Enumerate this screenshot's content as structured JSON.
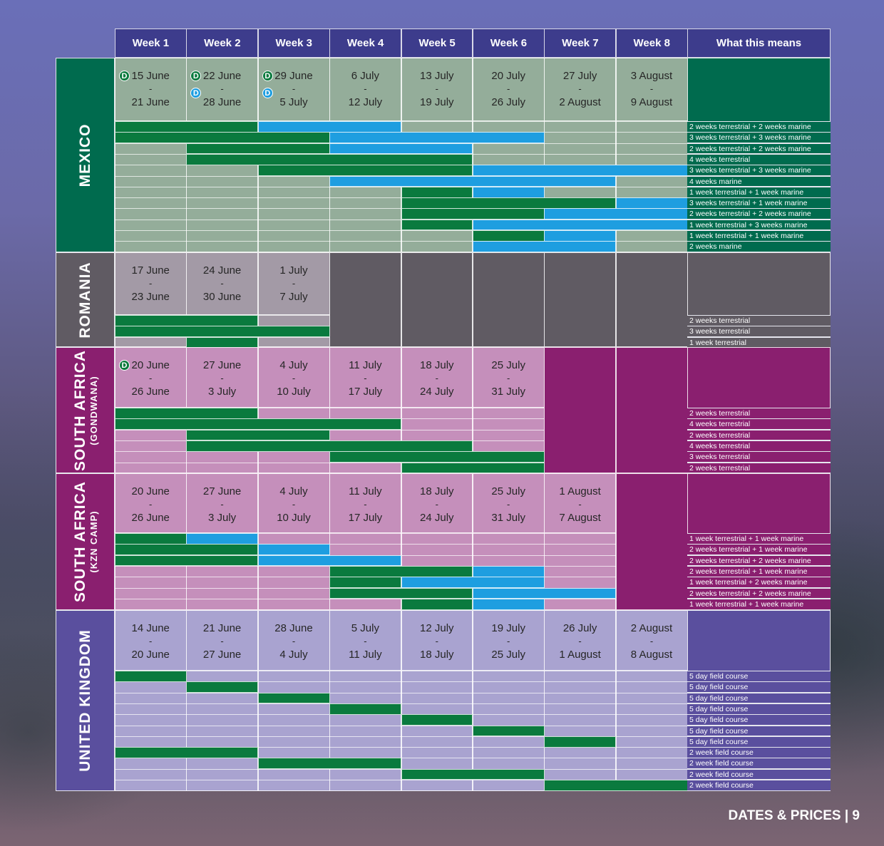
{
  "weeks": [
    "Week 1",
    "Week 2",
    "Week 3",
    "Week 4",
    "Week 5",
    "Week 6",
    "Week 7",
    "Week 8"
  ],
  "meaning_header": "What this means",
  "footer": "DATES & PRICES  |  9",
  "colors": {
    "terrestrial": "#0a7a3e",
    "marine": "#1e9ee0",
    "header": "#3d3c8c"
  },
  "countries": [
    {
      "key": "mexico",
      "name": "MEXICO",
      "sub": "",
      "fill": "#006b4e",
      "light": "#94ad9a",
      "cols": 8,
      "dates": [
        {
          "a": "15 June",
          "b": "21 June",
          "badges": [
            "D"
          ]
        },
        {
          "a": "22 June",
          "b": "28 June",
          "badges": [
            "D",
            "Dm"
          ]
        },
        {
          "a": "29 June",
          "b": "5 July",
          "badges": [
            "D",
            "Dm"
          ]
        },
        {
          "a": "6 July",
          "b": "12 July",
          "badges": []
        },
        {
          "a": "13 July",
          "b": "19 July",
          "badges": []
        },
        {
          "a": "20 July",
          "b": "26 July",
          "badges": []
        },
        {
          "a": "27 July",
          "b": "2 August",
          "badges": []
        },
        {
          "a": "3 August",
          "b": "9 August",
          "badges": []
        }
      ],
      "rows": [
        {
          "m": "2 weeks terrestrial + 2 weeks marine",
          "bars": [
            [
              0,
              2,
              "t"
            ],
            [
              2,
              4,
              "m"
            ]
          ]
        },
        {
          "m": "3 weeks terrestrial + 3 weeks marine",
          "bars": [
            [
              0,
              3,
              "t"
            ],
            [
              3,
              6,
              "m"
            ]
          ]
        },
        {
          "m": "2 weeks terrestrial + 2 weeks marine",
          "bars": [
            [
              1,
              3,
              "t"
            ],
            [
              3,
              5,
              "m"
            ]
          ]
        },
        {
          "m": "4 weeks terrestrial",
          "bars": [
            [
              1,
              5,
              "t"
            ]
          ]
        },
        {
          "m": "3 weeks terrestrial + 3 weeks marine",
          "bars": [
            [
              2,
              5,
              "t"
            ],
            [
              5,
              8,
              "m"
            ]
          ]
        },
        {
          "m": "4 weeks marine",
          "bars": [
            [
              3,
              7,
              "m"
            ]
          ]
        },
        {
          "m": "1 week terrestrial + 1 week marine",
          "bars": [
            [
              4,
              5,
              "t"
            ],
            [
              5,
              6,
              "m"
            ]
          ]
        },
        {
          "m": "3 weeks terrestrial + 1 week marine",
          "bars": [
            [
              4,
              7,
              "t"
            ],
            [
              7,
              8,
              "m"
            ]
          ]
        },
        {
          "m": "2 weeks terrestrial + 2 weeks marine",
          "bars": [
            [
              4,
              6,
              "t"
            ],
            [
              6,
              8,
              "m"
            ]
          ]
        },
        {
          "m": "1 week terrestrial + 3 weeks marine",
          "bars": [
            [
              4,
              5,
              "t"
            ],
            [
              5,
              8,
              "m"
            ]
          ]
        },
        {
          "m": "1 week terrestrial + 1 week marine",
          "bars": [
            [
              5,
              6,
              "t"
            ],
            [
              6,
              7,
              "m"
            ]
          ]
        },
        {
          "m": "2 weeks marine",
          "bars": [
            [
              5,
              7,
              "m"
            ]
          ]
        }
      ]
    },
    {
      "key": "romania",
      "name": "ROMANIA",
      "sub": "",
      "fill": "#605b63",
      "light": "#a39aa6",
      "cols": 3,
      "dates": [
        {
          "a": "17 June",
          "b": "23 June",
          "badges": []
        },
        {
          "a": "24 June",
          "b": "30 June",
          "badges": []
        },
        {
          "a": "1 July",
          "b": "7 July",
          "badges": []
        }
      ],
      "rows": [
        {
          "m": "2 weeks terrestrial",
          "bars": [
            [
              0,
              2,
              "t"
            ]
          ]
        },
        {
          "m": "3 weeks terrestrial",
          "bars": [
            [
              0,
              3,
              "t"
            ]
          ]
        },
        {
          "m": "1 week terrestrial",
          "bars": [
            [
              1,
              2,
              "t"
            ]
          ]
        }
      ]
    },
    {
      "key": "sa-gondwana",
      "name": "SOUTH AFRICA",
      "sub": "(GONDWANA)",
      "fill": "#8a1f6f",
      "light": "#c58fbb",
      "cols": 6,
      "dates": [
        {
          "a": "20 June",
          "b": "26 June",
          "badges": [
            "D"
          ]
        },
        {
          "a": "27 June",
          "b": "3 July",
          "badges": []
        },
        {
          "a": "4 July",
          "b": "10 July",
          "badges": []
        },
        {
          "a": "11 July",
          "b": "17 July",
          "badges": []
        },
        {
          "a": "18 July",
          "b": "24 July",
          "badges": []
        },
        {
          "a": "25 July",
          "b": "31 July",
          "badges": []
        }
      ],
      "rows": [
        {
          "m": "2 weeks terrestrial",
          "bars": [
            [
              0,
              2,
              "t"
            ]
          ]
        },
        {
          "m": "4  weeks terrestrial",
          "bars": [
            [
              0,
              4,
              "t"
            ]
          ]
        },
        {
          "m": "2 weeks terrestrial",
          "bars": [
            [
              1,
              3,
              "t"
            ]
          ]
        },
        {
          "m": "4 weeks terrestrial",
          "bars": [
            [
              1,
              5,
              "t"
            ]
          ]
        },
        {
          "m": "3 weeks terrestrial",
          "bars": [
            [
              3,
              6,
              "t"
            ]
          ]
        },
        {
          "m": "2 weeks terrestrial",
          "bars": [
            [
              4,
              6,
              "t"
            ]
          ]
        }
      ]
    },
    {
      "key": "sa-kzn",
      "name": "SOUTH AFRICA",
      "sub": "(KZN CAMP)",
      "fill": "#8a1f6f",
      "light": "#c58fbb",
      "cols": 7,
      "dates": [
        {
          "a": "20 June",
          "b": "26 June",
          "badges": []
        },
        {
          "a": "27 June",
          "b": "3 July",
          "badges": []
        },
        {
          "a": "4 July",
          "b": "10 July",
          "badges": []
        },
        {
          "a": "11 July",
          "b": "17 July",
          "badges": []
        },
        {
          "a": "18 July",
          "b": "24 July",
          "badges": []
        },
        {
          "a": "25 July",
          "b": "31 July",
          "badges": []
        },
        {
          "a": "1 August",
          "b": "7 August",
          "badges": []
        }
      ],
      "rows": [
        {
          "m": "1 week terrestrial + 1 week marine",
          "bars": [
            [
              0,
              1,
              "t"
            ],
            [
              1,
              2,
              "m"
            ]
          ]
        },
        {
          "m": "2 weeks terrestrial + 1 week marine",
          "bars": [
            [
              0,
              2,
              "t"
            ],
            [
              2,
              3,
              "m"
            ]
          ]
        },
        {
          "m": "2 weeks terrestrial + 2 weeks marine",
          "bars": [
            [
              0,
              2,
              "t"
            ],
            [
              2,
              4,
              "m"
            ]
          ]
        },
        {
          "m": "2 weeks terrestrial + 1 week marine",
          "bars": [
            [
              3,
              5,
              "t"
            ],
            [
              5,
              6,
              "m"
            ]
          ]
        },
        {
          "m": "1 week terrestrial + 2 weeks marine",
          "bars": [
            [
              3,
              4,
              "t"
            ],
            [
              4,
              6,
              "m"
            ]
          ]
        },
        {
          "m": "2 weeks terrestrial + 2 weeks marine",
          "bars": [
            [
              3,
              5,
              "t"
            ],
            [
              5,
              7,
              "m"
            ]
          ]
        },
        {
          "m": "1 week terrestrial + 1 week marine",
          "bars": [
            [
              4,
              5,
              "t"
            ],
            [
              5,
              6,
              "m"
            ]
          ]
        }
      ]
    },
    {
      "key": "uk",
      "name": "UNITED KINGDOM",
      "sub": "",
      "fill": "#5a4f9e",
      "light": "#a9a3d0",
      "cols": 8,
      "dates": [
        {
          "a": "14 June",
          "b": "20 June",
          "badges": []
        },
        {
          "a": "21 June",
          "b": "27 June",
          "badges": []
        },
        {
          "a": "28 June",
          "b": "4 July",
          "badges": []
        },
        {
          "a": "5 July",
          "b": "11 July",
          "badges": []
        },
        {
          "a": "12 July",
          "b": "18 July",
          "badges": []
        },
        {
          "a": "19 July",
          "b": "25 July",
          "badges": []
        },
        {
          "a": "26 July",
          "b": "1 August",
          "badges": []
        },
        {
          "a": "2 August",
          "b": "8 August",
          "badges": []
        }
      ],
      "rows": [
        {
          "m": "5 day field course",
          "bars": [
            [
              0,
              1,
              "t"
            ]
          ]
        },
        {
          "m": "5 day field course",
          "bars": [
            [
              1,
              2,
              "t"
            ]
          ]
        },
        {
          "m": "5 day field course",
          "bars": [
            [
              2,
              3,
              "t"
            ]
          ]
        },
        {
          "m": "5 day field course",
          "bars": [
            [
              3,
              4,
              "t"
            ]
          ]
        },
        {
          "m": "5 day field course",
          "bars": [
            [
              4,
              5,
              "t"
            ]
          ]
        },
        {
          "m": "5 day field course",
          "bars": [
            [
              5,
              6,
              "t"
            ]
          ]
        },
        {
          "m": "5 day field course",
          "bars": [
            [
              6,
              7,
              "t"
            ]
          ]
        },
        {
          "m": "2 week field course",
          "bars": [
            [
              0,
              2,
              "t"
            ]
          ]
        },
        {
          "m": "2 week field course",
          "bars": [
            [
              2,
              4,
              "t"
            ]
          ]
        },
        {
          "m": "2 week field course",
          "bars": [
            [
              4,
              6,
              "t"
            ]
          ]
        },
        {
          "m": "2 week field course",
          "bars": [
            [
              6,
              8,
              "t"
            ]
          ]
        }
      ]
    }
  ]
}
